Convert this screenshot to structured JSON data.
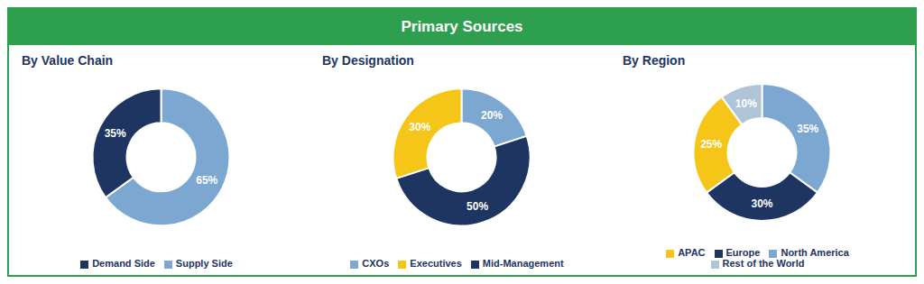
{
  "title": "Primary Sources",
  "color": "#2e9e4f",
  "chart_data": [
    {
      "type": "pie",
      "title": "By Value Chain",
      "categories": [
        "Supply Side",
        "Demand Side"
      ],
      "values": [
        65,
        35
      ],
      "value_labels": [
        "65%",
        "35%"
      ],
      "colors": [
        "#7ba7d1",
        "#1e3461"
      ],
      "data_labels": true,
      "legend": "bottom"
    },
    {
      "type": "pie",
      "title": "By Designation",
      "categories": [
        "CXOs",
        "Mid-Management",
        "Executives"
      ],
      "values": [
        20,
        50,
        30
      ],
      "value_labels": [
        "20%",
        "50%",
        "30%"
      ],
      "colors": [
        "#7ba7d1",
        "#1e3461",
        "#f5c518"
      ],
      "data_labels": true,
      "legend": "bottom"
    },
    {
      "type": "pie",
      "title": "By Region",
      "categories": [
        "North America",
        "Europe",
        "APAC",
        "Rest of the World"
      ],
      "values": [
        35,
        30,
        25,
        10
      ],
      "value_labels": [
        "35%",
        "30%",
        "25%",
        "10%"
      ],
      "colors": [
        "#7ba7d1",
        "#1e3461",
        "#f5c518",
        "#b0c4d8"
      ],
      "data_labels": true,
      "legend": "bottom"
    }
  ]
}
